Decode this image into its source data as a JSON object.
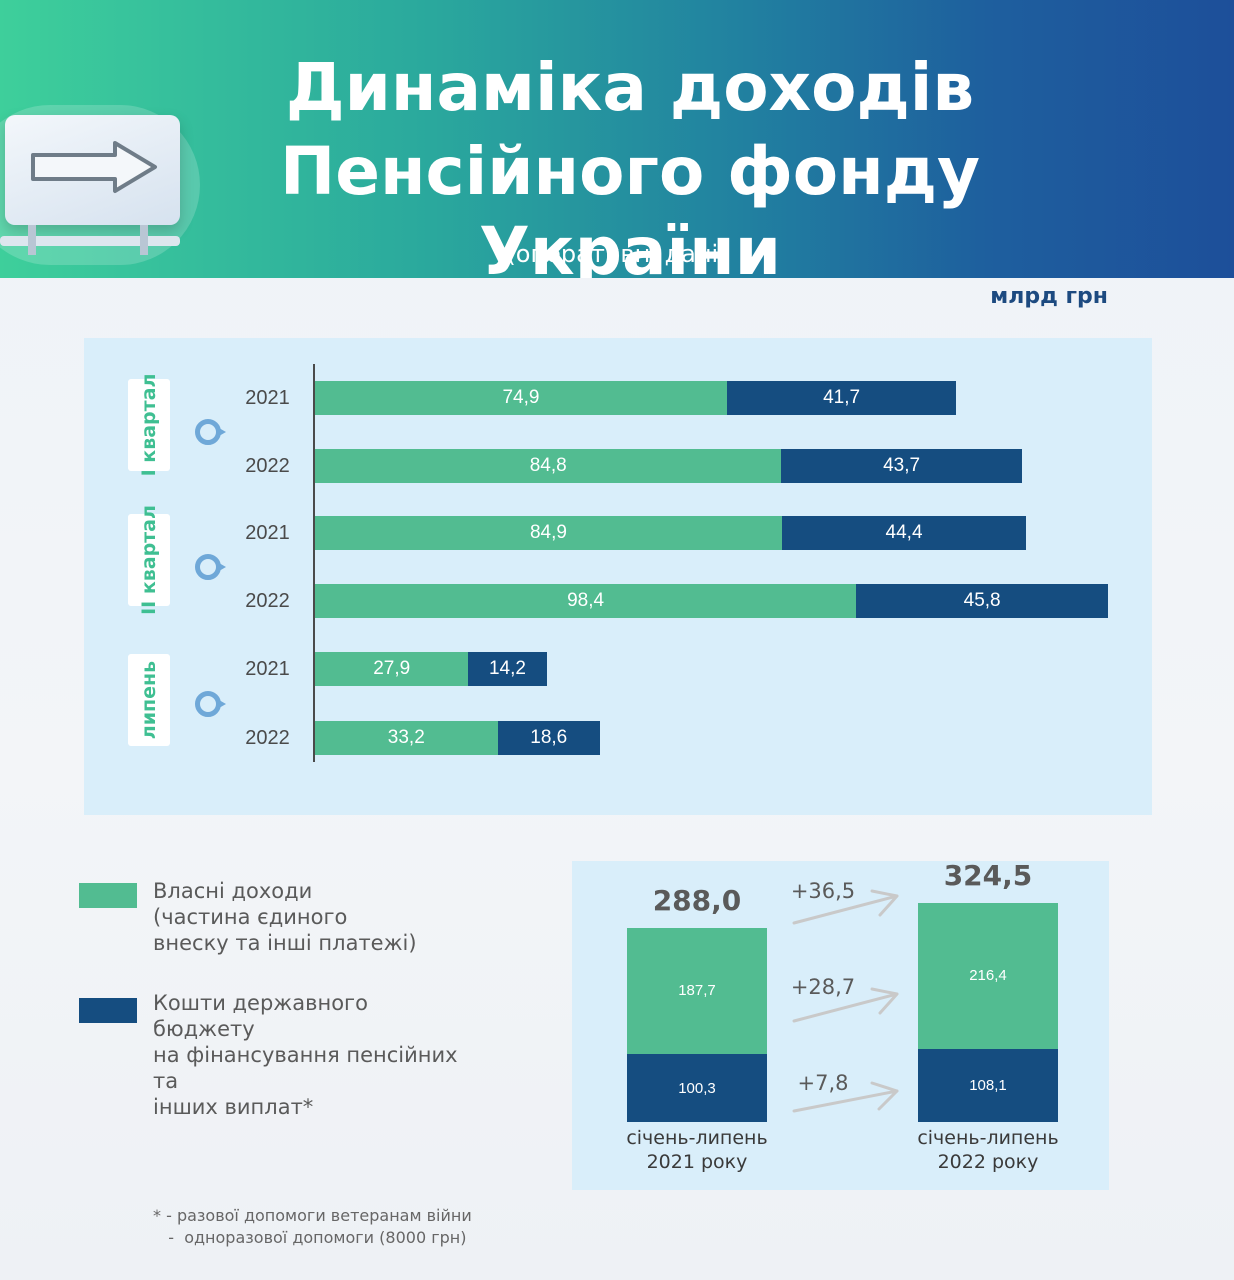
{
  "header": {
    "title_line1": "Динаміка доходів",
    "title_line2": "Пенсійного фонду України",
    "subtitle": "(оперативні дані)"
  },
  "unit": "млрд грн",
  "colors": {
    "own": "#52bc91",
    "state": "#154d80"
  },
  "chart_data": [
    {
      "type": "bar",
      "orientation": "horizontal",
      "stacked": true,
      "groups": [
        {
          "label": "I квартал",
          "rows": [
            {
              "year": "2021",
              "own": 74.9,
              "state": 41.7
            },
            {
              "year": "2022",
              "own": 84.8,
              "state": 43.7
            }
          ]
        },
        {
          "label": "II квартал",
          "rows": [
            {
              "year": "2021",
              "own": 84.9,
              "state": 44.4
            },
            {
              "year": "2022",
              "own": 98.4,
              "state": 45.8
            }
          ]
        },
        {
          "label": "липень",
          "rows": [
            {
              "year": "2021",
              "own": 27.9,
              "state": 14.2
            },
            {
              "year": "2022",
              "own": 33.2,
              "state": 18.6
            }
          ]
        }
      ],
      "value_labels": {
        "own": [
          "74,9",
          "84,8",
          "84,9",
          "98,4",
          "27,9",
          "33,2"
        ],
        "state": [
          "41,7",
          "43,7",
          "44,4",
          "45,8",
          "14,2",
          "18,6"
        ]
      }
    },
    {
      "type": "bar",
      "stacked": true,
      "categories": [
        "січень-липень 2021 року",
        "січень-липень 2022 року"
      ],
      "caption_lines": [
        [
          "січень-липень",
          "2021 року"
        ],
        [
          "січень-липень",
          "2022 року"
        ]
      ],
      "totals": [
        288.0,
        324.5
      ],
      "total_labels": [
        "288,0",
        "324,5"
      ],
      "own": [
        187.7,
        216.4
      ],
      "own_labels": [
        "187,7",
        "216,4"
      ],
      "state": [
        100.3,
        108.1
      ],
      "state_labels": [
        "100,3",
        "108,1"
      ],
      "deltas": [
        "+36,5",
        "+28,7",
        "+7,8"
      ]
    }
  ],
  "legend": [
    {
      "key": "own",
      "lines": [
        "Власні доходи",
        "(частина єдиного",
        "внеску та інші платежі)"
      ]
    },
    {
      "key": "state",
      "lines": [
        "Кошти державного бюджету",
        "на фінансування пенсійних та",
        "інших виплат*"
      ]
    }
  ],
  "footnote": {
    "line1": "* -  разової допомоги ветеранам війни",
    "line2": "   -  одноразової допомоги (8000 грн)"
  }
}
